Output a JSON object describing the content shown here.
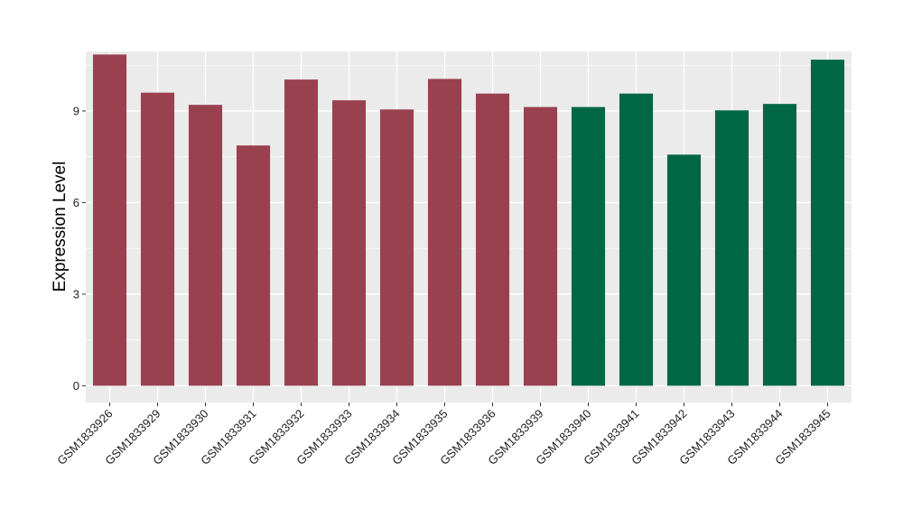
{
  "chart_data": {
    "type": "bar",
    "title": "",
    "xlabel": "",
    "ylabel": "Expression Level",
    "ylim": [
      -0.55,
      10.95
    ],
    "yticks": [
      0,
      3,
      6,
      9
    ],
    "grid": true,
    "legend": "none",
    "categories": [
      "GSM1833926",
      "GSM1833929",
      "GSM1833930",
      "GSM1833931",
      "GSM1833932",
      "GSM1833933",
      "GSM1833934",
      "GSM1833935",
      "GSM1833936",
      "GSM1833939",
      "GSM1833940",
      "GSM1833941",
      "GSM1833942",
      "GSM1833943",
      "GSM1833944",
      "GSM1833945"
    ],
    "values": [
      10.85,
      9.6,
      9.2,
      7.87,
      10.03,
      9.35,
      9.05,
      10.05,
      9.57,
      9.13,
      9.13,
      9.57,
      7.57,
      9.02,
      9.23,
      10.68
    ],
    "groups": [
      "a",
      "a",
      "a",
      "a",
      "a",
      "a",
      "a",
      "a",
      "a",
      "a",
      "b",
      "b",
      "b",
      "b",
      "b",
      "b"
    ],
    "group_colors": {
      "a": "#99414f",
      "b": "#006644"
    },
    "panel_background": "#ebebeb",
    "grid_color": "#ffffff"
  }
}
